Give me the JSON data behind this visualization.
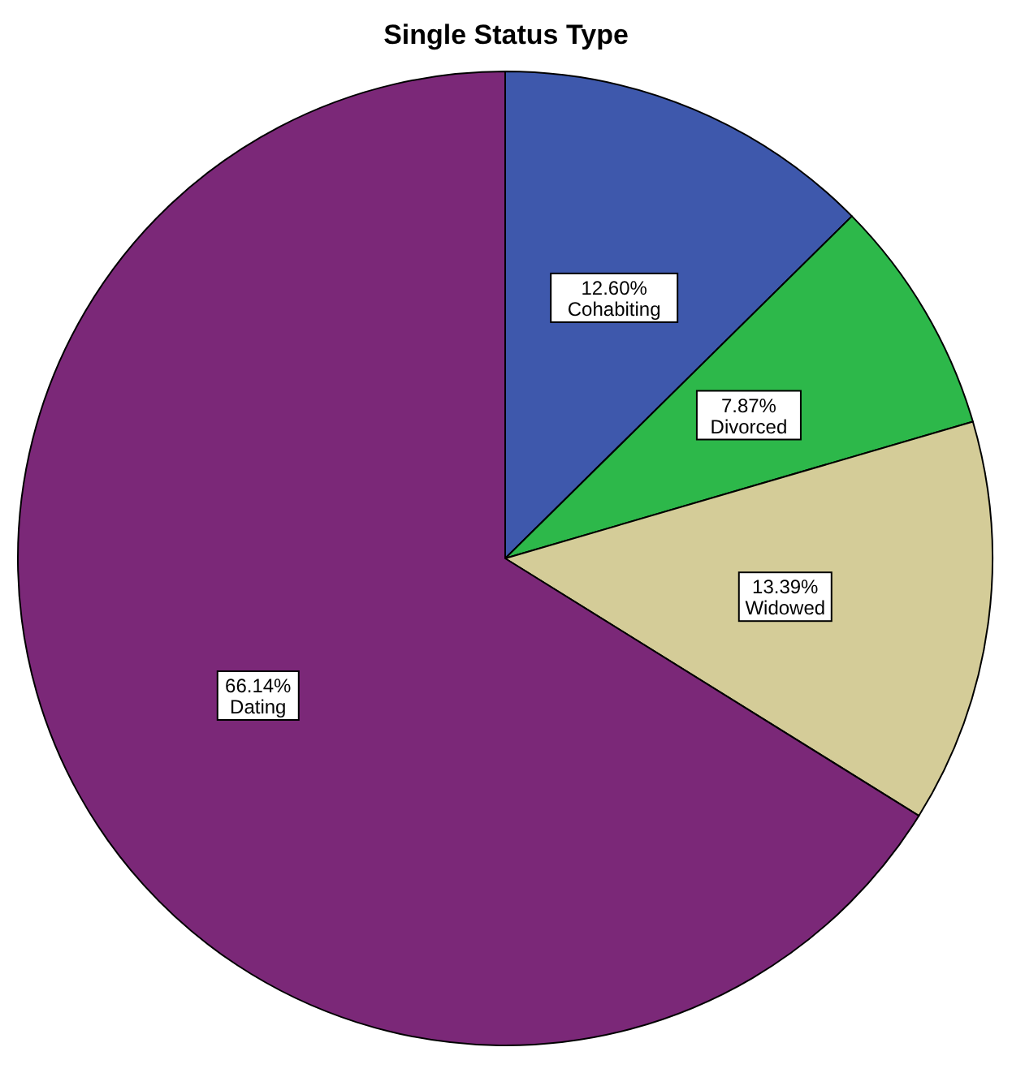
{
  "chart_data": {
    "type": "pie",
    "title": "Single Status Type",
    "categories": [
      "Cohabiting",
      "Divorced",
      "Widowed",
      "Dating"
    ],
    "values": [
      12.6,
      7.87,
      13.39,
      66.14
    ],
    "value_labels": [
      "12.60%",
      "7.87%",
      "13.39%",
      "66.14%"
    ],
    "colors": [
      "#3e58ac",
      "#2db84a",
      "#d4cc98",
      "#7b2878"
    ]
  }
}
